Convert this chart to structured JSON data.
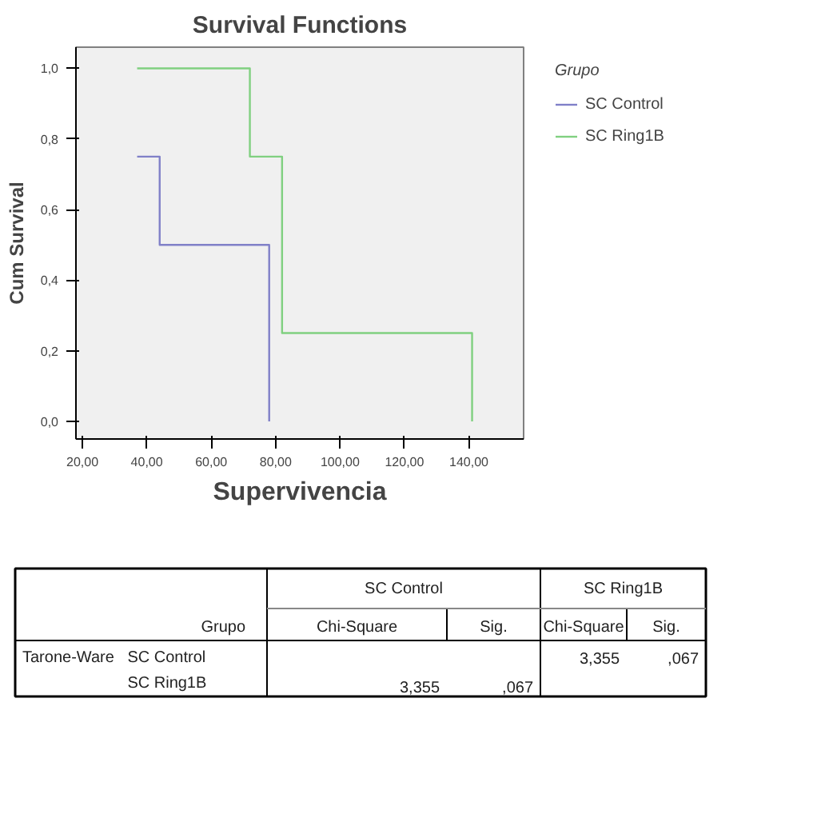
{
  "chart_data": {
    "type": "step",
    "title": "Survival Functions",
    "xlabel": "Supervivencia",
    "ylabel": "Cum Survival",
    "legend_title": "Grupo",
    "legend": "right",
    "xlim": [
      18,
      157
    ],
    "ylim": [
      -0.05,
      1.06
    ],
    "xticks": [
      {
        "value": 20,
        "label": "20,00"
      },
      {
        "value": 40,
        "label": "40,00"
      },
      {
        "value": 60,
        "label": "60,00"
      },
      {
        "value": 80,
        "label": "80,00"
      },
      {
        "value": 100,
        "label": "100,00"
      },
      {
        "value": 120,
        "label": "120,00"
      },
      {
        "value": 140,
        "label": "140,00"
      }
    ],
    "yticks": [
      {
        "value": 0,
        "label": "0,0"
      },
      {
        "value": 0.2,
        "label": "0,2"
      },
      {
        "value": 0.4,
        "label": "0,4"
      },
      {
        "value": 0.6,
        "label": "0,6"
      },
      {
        "value": 0.8,
        "label": "0,8"
      },
      {
        "value": 1.0,
        "label": "1,0"
      }
    ],
    "grid": false,
    "series": [
      {
        "name": "SC Control",
        "color": "#8080c8",
        "x": [
          37,
          44,
          78
        ],
        "values": [
          0.75,
          0.5,
          0
        ]
      },
      {
        "name": "SC Ring1B",
        "color": "#80d080",
        "x": [
          37,
          72,
          82,
          141
        ],
        "values": [
          1.0,
          0.75,
          0.25,
          0
        ]
      }
    ],
    "annotations": [
      "SC Control",
      "SC Ring1B",
      "Grupo",
      "Chi-Square",
      "Sig.",
      "Chi-Square",
      "Sig.",
      "Tarone-Ware",
      "SC Control",
      "3,355",
      ",067",
      "SC Ring1B",
      "3,355",
      ",067"
    ]
  }
}
